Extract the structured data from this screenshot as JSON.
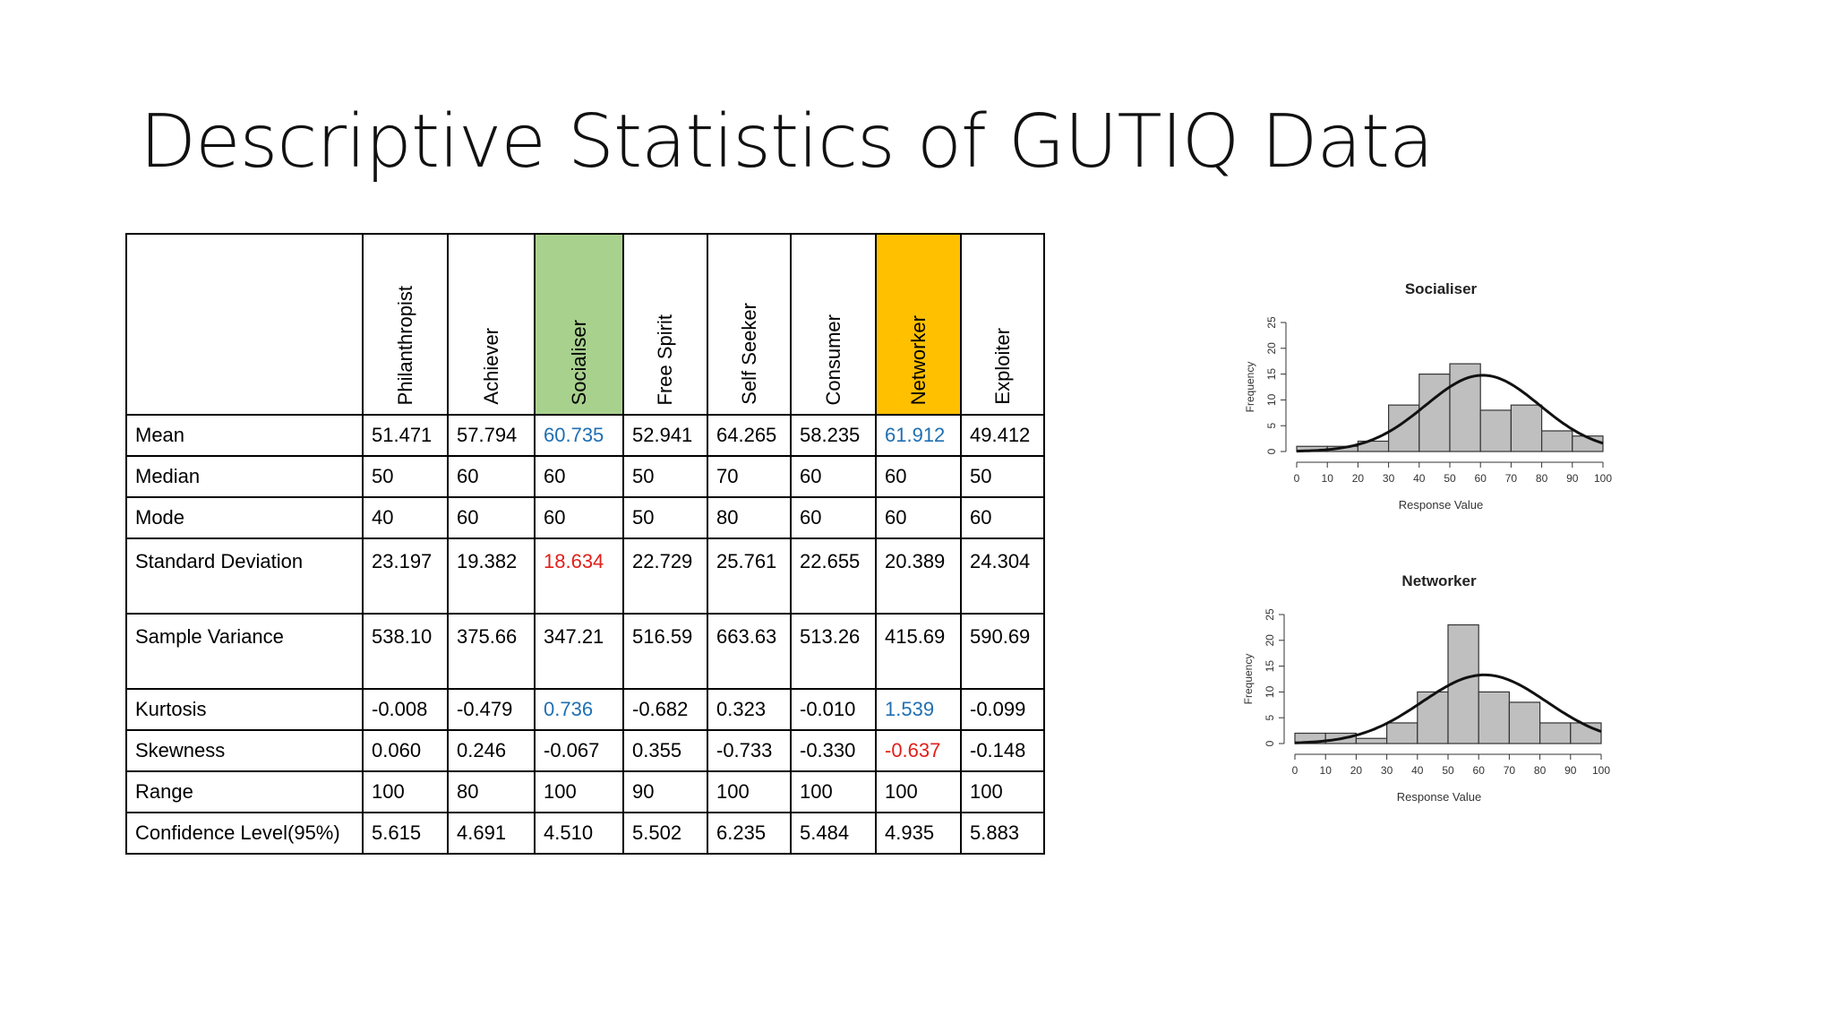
{
  "slide": {
    "title": "Descriptive Statistics of GUTIQ Data"
  },
  "table": {
    "columns": [
      "Philanthropist",
      "Achiever",
      "Socialiser",
      "Free Spirit",
      "Self Seeker",
      "Consumer",
      "Networker",
      "Exploiter"
    ],
    "rows": [
      {
        "label": "Mean",
        "values": [
          "51.471",
          "57.794",
          "60.735",
          "52.941",
          "64.265",
          "58.235",
          "61.912",
          "49.412"
        ]
      },
      {
        "label": "Median",
        "values": [
          "50",
          "60",
          "60",
          "50",
          "70",
          "60",
          "60",
          "50"
        ]
      },
      {
        "label": "Mode",
        "values": [
          "40",
          "60",
          "60",
          "50",
          "80",
          "60",
          "60",
          "60"
        ]
      },
      {
        "label": "Standard Deviation",
        "values": [
          "23.197",
          "19.382",
          "18.634",
          "22.729",
          "25.761",
          "22.655",
          "20.389",
          "24.304"
        ]
      },
      {
        "label": "Sample Variance",
        "values": [
          "538.10",
          "375.66",
          "347.21",
          "516.59",
          "663.63",
          "513.26",
          "415.69",
          "590.69"
        ]
      },
      {
        "label": "Kurtosis",
        "values": [
          "-0.008",
          "-0.479",
          "0.736",
          "-0.682",
          "0.323",
          "-0.010",
          "1.539",
          "-0.099"
        ]
      },
      {
        "label": "Skewness",
        "values": [
          "0.060",
          "0.246",
          "-0.067",
          "0.355",
          "-0.733",
          "-0.330",
          "-0.637",
          "-0.148"
        ]
      },
      {
        "label": "Range",
        "values": [
          "100",
          "80",
          "100",
          "90",
          "100",
          "100",
          "100",
          "100"
        ]
      },
      {
        "label": "Confidence Level(95%)",
        "values": [
          "5.615",
          "4.691",
          "4.510",
          "5.502",
          "6.235",
          "5.484",
          "4.935",
          "5.883"
        ]
      }
    ],
    "highlight_colors": {
      "socialiser": "#a9d18e",
      "networker": "#ffc000",
      "blue": "#1f6fb3",
      "red": "#e0201b"
    }
  },
  "chart_data": [
    {
      "type": "bar",
      "title": "Socialiser",
      "xlabel": "Response Value",
      "ylabel": "Frequency",
      "bin_edges": [
        0,
        10,
        20,
        30,
        40,
        50,
        60,
        70,
        80,
        90,
        100
      ],
      "values": [
        1,
        1,
        2,
        9,
        15,
        17,
        8,
        9,
        4,
        3
      ],
      "xlim": [
        0,
        100
      ],
      "ylim": [
        0,
        25
      ],
      "xticks": [
        "0",
        "10",
        "20",
        "30",
        "40",
        "50",
        "60",
        "70",
        "80",
        "90",
        "100"
      ],
      "yticks": [
        "0",
        "5",
        "10",
        "15",
        "20",
        "25"
      ],
      "normal_curve": {
        "mean": 60.735,
        "sd": 18.634
      }
    },
    {
      "type": "bar",
      "title": "Networker",
      "xlabel": "Response Value",
      "ylabel": "Frequency",
      "bin_edges": [
        0,
        10,
        20,
        30,
        40,
        50,
        60,
        70,
        80,
        90,
        100
      ],
      "values": [
        2,
        2,
        1,
        4,
        10,
        23,
        10,
        8,
        4,
        4
      ],
      "xlim": [
        0,
        100
      ],
      "ylim": [
        0,
        25
      ],
      "xticks": [
        "0",
        "10",
        "20",
        "30",
        "40",
        "50",
        "60",
        "70",
        "80",
        "90",
        "100"
      ],
      "yticks": [
        "0",
        "5",
        "10",
        "15",
        "20",
        "25"
      ],
      "normal_curve": {
        "mean": 61.912,
        "sd": 20.389
      }
    }
  ]
}
